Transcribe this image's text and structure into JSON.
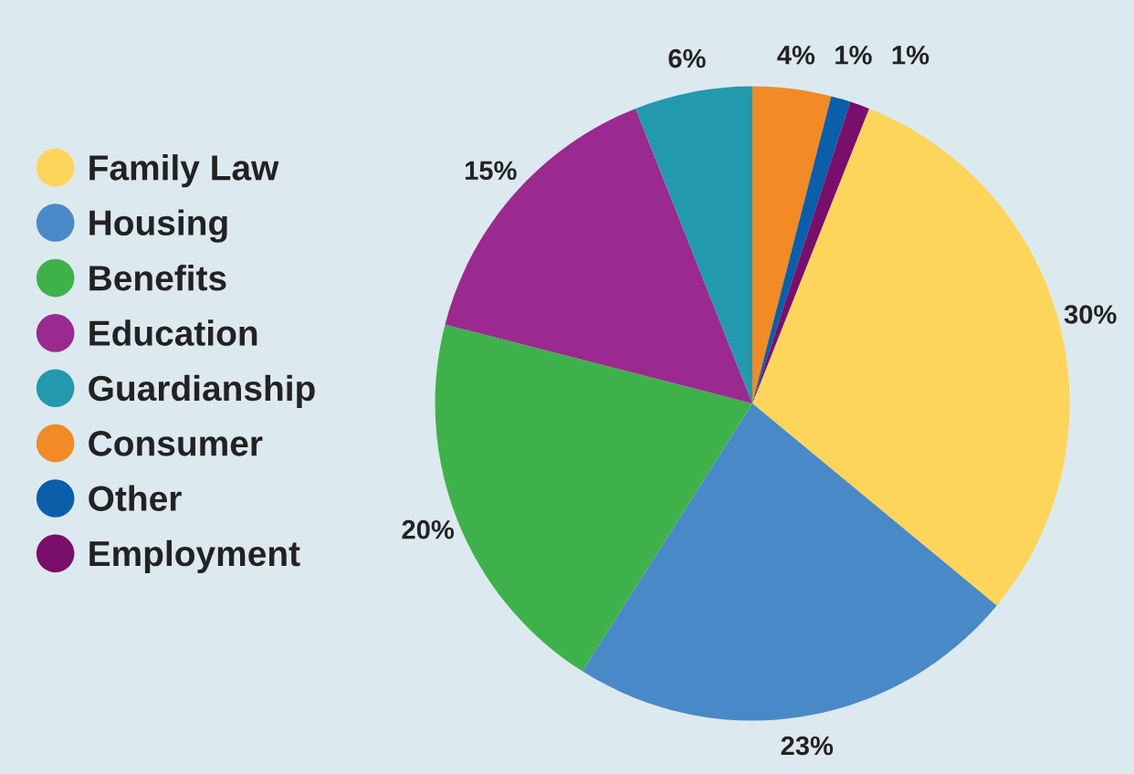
{
  "chart_data": {
    "type": "pie",
    "categories": [
      "Family Law",
      "Housing",
      "Benefits",
      "Education",
      "Guardianship",
      "Consumer",
      "Other",
      "Employment"
    ],
    "values": [
      30,
      23,
      20,
      15,
      6,
      4,
      1,
      1
    ],
    "value_labels": [
      "30%",
      "23%",
      "20%",
      "15%",
      "6%",
      "4%",
      "1%",
      "1%"
    ],
    "colors": [
      "#fdd55a",
      "#4a89c8",
      "#3fb14b",
      "#9a2a8f",
      "#2399ae",
      "#f28a25",
      "#0b5ea8",
      "#7a0e6b"
    ],
    "legend": "left"
  }
}
